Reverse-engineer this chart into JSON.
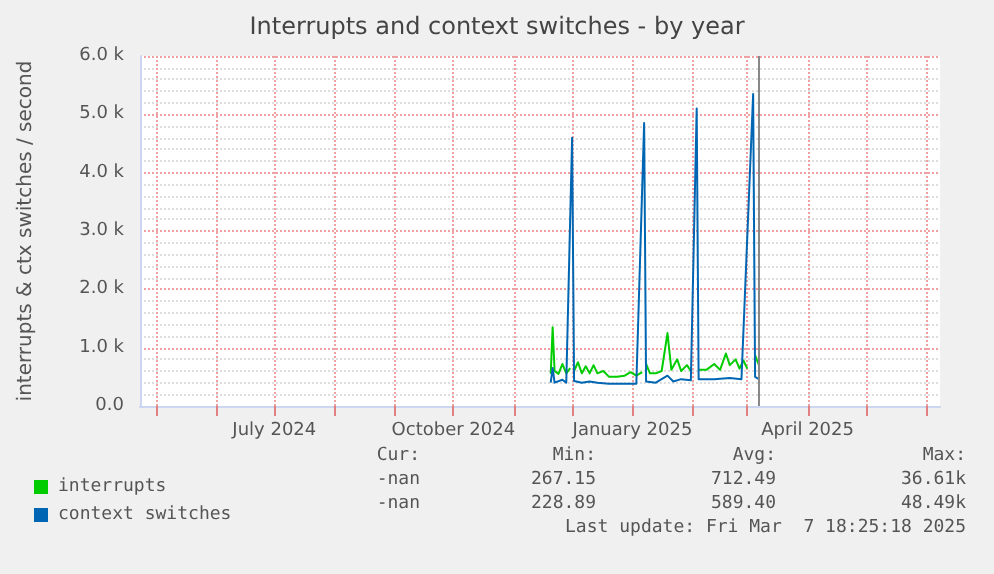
{
  "chart_data": {
    "type": "line",
    "title": "Interrupts and context switches - by year",
    "ylabel": "interrupts & ctx switches / second",
    "series": [
      {
        "name": "interrupts",
        "color": "#00cc00",
        "x": [
          "2024-11-20",
          "2024-11-21",
          "2024-11-22",
          "2024-11-24",
          "2024-11-26",
          "2024-11-28",
          "2024-11-30",
          "2024-12-01",
          "2024-12-02",
          "2024-12-04",
          "2024-12-06",
          "2024-12-08",
          "2024-12-10",
          "2024-12-12",
          "2024-12-14",
          "2024-12-17",
          "2024-12-20",
          "2024-12-24",
          "2024-12-28",
          "2024-12-31",
          "2025-01-03",
          "2025-01-06",
          "2025-01-07",
          "2025-01-08",
          "2025-01-10",
          "2025-01-13",
          "2025-01-16",
          "2025-01-19",
          "2025-01-21",
          "2025-01-24",
          "2025-01-26",
          "2025-01-29",
          "2025-01-31",
          "2025-02-03",
          "2025-02-04",
          "2025-02-08",
          "2025-02-12",
          "2025-02-15",
          "2025-02-18",
          "2025-02-20",
          "2025-02-23",
          "2025-02-25",
          "2025-02-27",
          "2025-03-01",
          "2025-03-04",
          "2025-03-05",
          "2025-03-07"
        ],
        "values": [
          550,
          1350,
          600,
          550,
          720,
          560,
          650,
          null,
          600,
          750,
          560,
          680,
          560,
          700,
          560,
          600,
          500,
          500,
          520,
          580,
          520,
          580,
          null,
          720,
          560,
          560,
          600,
          1250,
          620,
          800,
          600,
          700,
          600,
          null,
          620,
          620,
          720,
          620,
          900,
          700,
          800,
          640,
          780,
          640,
          null,
          870,
          700
        ]
      },
      {
        "name": "context switches",
        "color": "#0066b3",
        "x": [
          "2024-11-20",
          "2024-11-21",
          "2024-11-22",
          "2024-11-26",
          "2024-11-28",
          "2024-12-01",
          "2024-12-02",
          "2024-12-06",
          "2024-12-10",
          "2024-12-14",
          "2024-12-20",
          "2024-12-28",
          "2025-01-03",
          "2025-01-07",
          "2025-01-08",
          "2025-01-13",
          "2025-01-19",
          "2025-01-22",
          "2025-01-26",
          "2025-01-31",
          "2025-02-03",
          "2025-02-04",
          "2025-02-12",
          "2025-02-20",
          "2025-02-26",
          "2025-03-04",
          "2025-03-05",
          "2025-03-07"
        ],
        "values": [
          400,
          650,
          400,
          450,
          400,
          4600,
          430,
          400,
          420,
          400,
          380,
          380,
          380,
          4850,
          420,
          400,
          520,
          420,
          460,
          440,
          5100,
          460,
          460,
          480,
          460,
          5350,
          500,
          460
        ]
      }
    ],
    "xlim": [
      "2024-04-23",
      "2025-06-08"
    ],
    "xticks": [
      {
        "value": "2024-05-01",
        "label": null
      },
      {
        "value": "2024-06-01",
        "label": null
      },
      {
        "value": "2024-07-01",
        "label": "July 2024"
      },
      {
        "value": "2024-08-01",
        "label": null
      },
      {
        "value": "2024-09-01",
        "label": null
      },
      {
        "value": "2024-10-01",
        "label": "October 2024"
      },
      {
        "value": "2024-11-01",
        "label": null
      },
      {
        "value": "2024-12-01",
        "label": null
      },
      {
        "value": "2025-01-01",
        "label": "January 2025"
      },
      {
        "value": "2025-02-01",
        "label": null
      },
      {
        "value": "2025-03-01",
        "label": null
      },
      {
        "value": "2025-04-01",
        "label": "April 2025"
      },
      {
        "value": "2025-05-01",
        "label": null
      },
      {
        "value": "2025-06-01",
        "label": null
      }
    ],
    "ylim": [
      0,
      6000
    ],
    "yticks": [
      {
        "value": 0,
        "label": "0.0"
      },
      {
        "value": 1000,
        "label": "1.0 k"
      },
      {
        "value": 2000,
        "label": "2.0 k"
      },
      {
        "value": 3000,
        "label": "3.0 k"
      },
      {
        "value": 4000,
        "label": "4.0 k"
      },
      {
        "value": 5000,
        "label": "5.0 k"
      },
      {
        "value": 6000,
        "label": "6.0 k"
      }
    ],
    "ref_lines": [
      {
        "axis": "x",
        "value": "2025-03-07",
        "color": "#888888"
      }
    ],
    "grid": true,
    "legend": "bottom",
    "marker": "none",
    "line_style": "solid",
    "annotations": [
      "Cur:",
      "Min:",
      "Avg:",
      "Max:",
      "-nan",
      "267.15",
      "712.49",
      "36.61k",
      "-nan",
      "228.89",
      "589.40",
      "48.49k",
      "Last update: Fri Mar  7 18:25:18 2025"
    ]
  }
}
